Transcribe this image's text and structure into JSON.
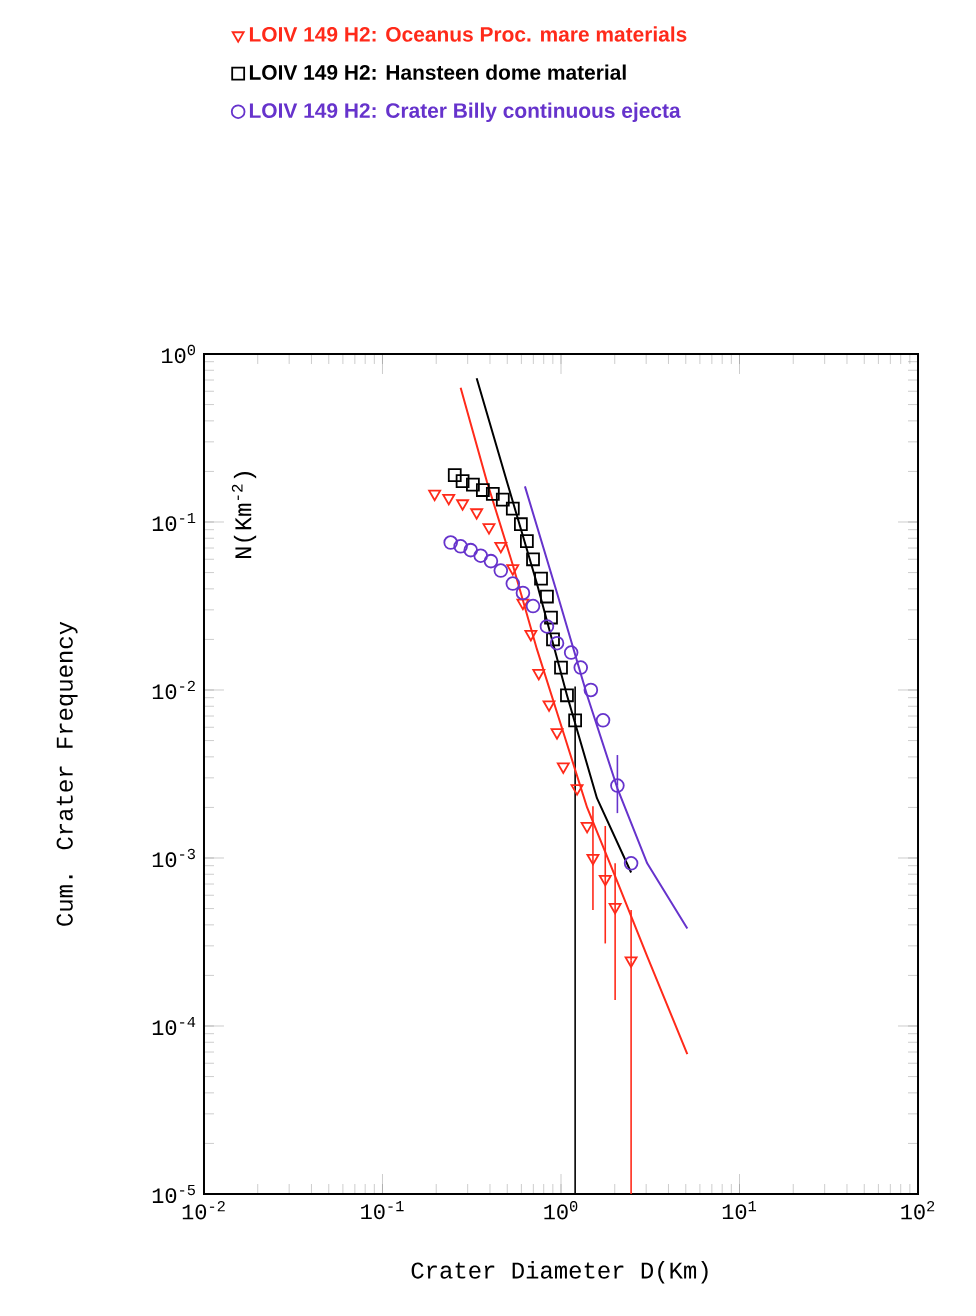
{
  "chart_data": {
    "type": "scatter",
    "ylabel": "Cum. Crater Frequency",
    "xlabel": "Crater Diameter D(Km)",
    "annotations": [
      "N(Km$^{-2}$)"
    ],
    "log": "xy",
    "xlim": [
      0.01,
      100
    ],
    "ylim": [
      1e-05,
      1
    ],
    "xticks": [
      {
        "value": 0.01,
        "label": "10$^{-2}$"
      },
      {
        "value": 0.1,
        "label": "10$^{-1}$"
      },
      {
        "value": 1,
        "label": "10$^{0}$"
      },
      {
        "value": 10,
        "label": "10$^{1}$"
      },
      {
        "value": 100,
        "label": "10$^{2}$"
      }
    ],
    "yticks": [
      {
        "value": 1e-05,
        "label": "10$^{-5}$"
      },
      {
        "value": 0.0001,
        "label": "10$^{-4}$"
      },
      {
        "value": 0.001,
        "label": "10$^{-3}$"
      },
      {
        "value": 0.01,
        "label": "10$^{-2}$"
      },
      {
        "value": 0.1,
        "label": "10$^{-1}$"
      },
      {
        "value": 1,
        "label": "10$^{0}$"
      }
    ],
    "legend": "top",
    "series": [
      {
        "name": "LOIV 149 H2: Oceanus Proc. mare materials",
        "color": "#ff2a1a",
        "marker": "triangle",
        "x": [
          0.196,
          0.235,
          0.281,
          0.337,
          0.395,
          0.46,
          0.537,
          0.612,
          0.678,
          0.751,
          0.857,
          0.95,
          1.03,
          1.23,
          1.4,
          1.51,
          1.77,
          2.01,
          2.47
        ],
        "values": [
          0.147,
          0.139,
          0.129,
          0.114,
          0.093,
          0.072,
          0.053,
          0.033,
          0.0215,
          0.0126,
          0.0082,
          0.0056,
          0.0035,
          0.0026,
          0.00155,
          0.001,
          0.00075,
          0.00051,
          0.000245
        ],
        "errors": [
          null,
          null,
          null,
          null,
          null,
          null,
          null,
          null,
          null,
          null,
          null,
          null,
          null,
          null,
          null,
          [
            0.00049,
            0.00203
          ],
          [
            0.00031,
            0.00155
          ],
          [
            0.000143,
            0.00093
          ],
          [
            1e-05,
            0.00049
          ]
        ]
      },
      {
        "name": "LOIV 149 H2: Hansteen dome material",
        "color": "#000000",
        "marker": "square",
        "x": [
          0.254,
          0.281,
          0.321,
          0.365,
          0.415,
          0.472,
          0.537,
          0.596,
          0.644,
          0.697,
          0.773,
          0.834,
          0.879,
          0.902,
          1.0,
          1.08,
          1.2
        ],
        "values": [
          0.19,
          0.175,
          0.167,
          0.155,
          0.147,
          0.136,
          0.12,
          0.097,
          0.077,
          0.06,
          0.046,
          0.036,
          0.027,
          0.02,
          0.0136,
          0.0093,
          0.0066
        ],
        "errors": [
          null,
          null,
          null,
          null,
          null,
          null,
          null,
          null,
          null,
          null,
          null,
          null,
          null,
          null,
          null,
          null,
          [
            1e-05,
            0.0105
          ]
        ]
      },
      {
        "name": "LOIV 149 H2: Crater Billy continuous ejecta",
        "color": "#6633cc",
        "marker": "circle",
        "x": [
          0.241,
          0.274,
          0.312,
          0.355,
          0.405,
          0.46,
          0.537,
          0.612,
          0.697,
          0.834,
          0.95,
          1.14,
          1.29,
          1.47,
          1.72,
          2.07,
          2.47
        ],
        "values": [
          0.0755,
          0.0717,
          0.068,
          0.063,
          0.0585,
          0.0514,
          0.043,
          0.0378,
          0.0316,
          0.0239,
          0.019,
          0.0167,
          0.0136,
          0.01,
          0.0066,
          0.0027,
          0.00093
        ],
        "errors": [
          null,
          null,
          null,
          null,
          null,
          null,
          null,
          null,
          null,
          null,
          null,
          null,
          null,
          null,
          null,
          [
            0.00185,
            0.0041
          ],
          null
        ]
      },
      {
        "type": "line",
        "color": "#ff2a1a",
        "marker": "none",
        "line_style": "solid",
        "x": [
          0.274,
          0.384,
          0.537,
          0.733,
          1.03,
          1.4,
          2.07,
          3.04,
          5.1
        ],
        "values": [
          0.63,
          0.175,
          0.0555,
          0.0175,
          0.0056,
          0.002,
          0.00072,
          0.00026,
          6.8e-05
        ]
      },
      {
        "type": "line",
        "color": "#000000",
        "marker": "none",
        "line_style": "solid",
        "x": [
          0.337,
          0.497,
          0.733,
          1.08,
          1.59,
          2.47
        ],
        "values": [
          0.717,
          0.175,
          0.043,
          0.0093,
          0.00227,
          0.00082
        ]
      },
      {
        "type": "line",
        "color": "#6633cc",
        "marker": "none",
        "line_style": "solid",
        "x": [
          0.628,
          0.95,
          1.4,
          2.07,
          3.04,
          5.1
        ],
        "values": [
          0.163,
          0.0378,
          0.0093,
          0.0026,
          0.00093,
          0.00038
        ]
      }
    ]
  }
}
